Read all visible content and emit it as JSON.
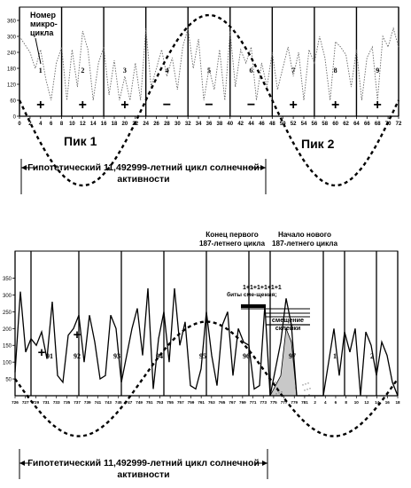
{
  "chart_data": [
    {
      "type": "line",
      "yticks": [
        "360",
        "300",
        "240",
        "180",
        "120",
        "60",
        "0"
      ],
      "ylim": [
        0,
        360
      ],
      "xlim": [
        0,
        72
      ],
      "xticks": [
        "0",
        "2",
        "4",
        "6",
        "8",
        "10",
        "12",
        "14",
        "16",
        "18",
        "20",
        "22",
        "24",
        "26",
        "28",
        "30",
        "32",
        "34",
        "36",
        "38",
        "40",
        "42",
        "44",
        "46",
        "48",
        "50",
        "52",
        "54",
        "56",
        "58",
        "60",
        "62",
        "64",
        "66",
        "68",
        "70",
        "72"
      ],
      "segment_boundaries": [
        0,
        8,
        16,
        24,
        32,
        40,
        48,
        56,
        64,
        72
      ],
      "segment_numbers": [
        "1",
        "2",
        "3",
        "4",
        "5",
        "6",
        "7",
        "8",
        "9"
      ],
      "segment_signs": [
        "+",
        "+",
        "+",
        "−",
        "−",
        "−",
        "+",
        "+",
        "+"
      ],
      "annotation_label": "Номер микро-цикла",
      "peak1_label": "Пик 1",
      "peak2_label": "Пик 2",
      "hypothesis_label_line1": "Гипотетический 11,492999-летний цикл солнечной",
      "hypothesis_label_line2": "активности",
      "wave": {
        "period": 48,
        "amplitude": 320,
        "baseline": 60
      },
      "series": [
        {
          "values": [
            [
              0,
              300
            ],
            [
              2,
              240
            ],
            [
              3,
              180
            ],
            [
              4,
              250
            ],
            [
              5,
              140
            ],
            [
              6,
              60
            ],
            [
              7,
              200
            ],
            [
              8,
              260
            ],
            [
              9,
              60
            ],
            [
              10,
              250
            ],
            [
              11,
              110
            ],
            [
              12,
              320
            ],
            [
              13,
              250
            ],
            [
              14,
              60
            ],
            [
              15,
              200
            ],
            [
              16,
              260
            ],
            [
              17,
              80
            ],
            [
              18,
              210
            ],
            [
              19,
              60
            ],
            [
              20,
              150
            ],
            [
              21,
              60
            ],
            [
              22,
              200
            ],
            [
              23,
              60
            ],
            [
              24,
              330
            ],
            [
              25,
              110
            ],
            [
              26,
              180
            ],
            [
              27,
              250
            ],
            [
              28,
              150
            ],
            [
              29,
              220
            ],
            [
              30,
              100
            ],
            [
              31,
              260
            ],
            [
              32,
              330
            ],
            [
              33,
              180
            ],
            [
              34,
              290
            ],
            [
              35,
              60
            ],
            [
              36,
              180
            ],
            [
              37,
              100
            ],
            [
              38,
              250
            ],
            [
              39,
              60
            ],
            [
              40,
              320
            ],
            [
              41,
              110
            ],
            [
              42,
              250
            ],
            [
              43,
              200
            ],
            [
              44,
              260
            ],
            [
              45,
              60
            ],
            [
              46,
              200
            ],
            [
              47,
              110
            ],
            [
              48,
              240
            ],
            [
              49,
              100
            ],
            [
              50,
              180
            ],
            [
              51,
              260
            ],
            [
              52,
              150
            ],
            [
              53,
              240
            ],
            [
              54,
              60
            ],
            [
              55,
              250
            ],
            [
              56,
              200
            ],
            [
              57,
              300
            ],
            [
              58,
              220
            ],
            [
              59,
              60
            ],
            [
              60,
              280
            ],
            [
              61,
              260
            ],
            [
              62,
              230
            ],
            [
              63,
              110
            ],
            [
              64,
              250
            ],
            [
              65,
              60
            ],
            [
              66,
              220
            ],
            [
              67,
              260
            ],
            [
              68,
              60
            ],
            [
              69,
              300
            ],
            [
              70,
              260
            ],
            [
              71,
              330
            ],
            [
              72,
              260
            ]
          ]
        }
      ]
    },
    {
      "type": "line",
      "yticks": [
        "350",
        "300",
        "250",
        "200",
        "150",
        "100",
        "50"
      ],
      "ylim": [
        0,
        370
      ],
      "xlim": [
        0,
        72
      ],
      "xticks": [
        "726",
        "727",
        "729",
        "731",
        "733",
        "735",
        "737",
        "739",
        "741",
        "743",
        "745",
        "747",
        "749",
        "751",
        "753",
        "755",
        "757",
        "759",
        "761",
        "763",
        "765",
        "767",
        "769",
        "771",
        "773",
        "775",
        "777",
        "779",
        "781",
        "2",
        "4",
        "6",
        "8",
        "10",
        "12",
        "14",
        "16",
        "18"
      ],
      "segment_labels": [
        "91",
        "92",
        "93",
        "94",
        "95",
        "96",
        "97",
        "1",
        "2"
      ],
      "annotation_end": "Конец первого 187-летнего цикла",
      "annotation_start": "Начало нового 187-летнего цикла",
      "annotation_bits": "1+1+1+1+1+1 биты сме-щения;",
      "annotation_shift": "смещение склейки",
      "hypothesis_label_line1": "Гипотетический 11,492999-летний цикл солнечной",
      "hypothesis_label_line2": "активности",
      "wave": {
        "period": 48,
        "amplitude": 310,
        "baseline": 50
      },
      "series": [
        {
          "values": [
            [
              0,
              70
            ],
            [
              1,
              310
            ],
            [
              2,
              130
            ],
            [
              3,
              170
            ],
            [
              4,
              150
            ],
            [
              5,
              190
            ],
            [
              6,
              110
            ],
            [
              7,
              280
            ],
            [
              8,
              60
            ],
            [
              9,
              40
            ],
            [
              10,
              180
            ],
            [
              11,
              200
            ],
            [
              12,
              240
            ],
            [
              13,
              100
            ],
            [
              14,
              240
            ],
            [
              15,
              160
            ],
            [
              16,
              50
            ],
            [
              17,
              60
            ],
            [
              18,
              240
            ],
            [
              19,
              200
            ],
            [
              20,
              40
            ],
            [
              21,
              120
            ],
            [
              22,
              200
            ],
            [
              23,
              260
            ],
            [
              24,
              120
            ],
            [
              25,
              320
            ],
            [
              26,
              20
            ],
            [
              27,
              170
            ],
            [
              28,
              250
            ],
            [
              29,
              100
            ],
            [
              30,
              320
            ],
            [
              31,
              150
            ],
            [
              32,
              220
            ],
            [
              33,
              30
            ],
            [
              34,
              20
            ],
            [
              35,
              80
            ],
            [
              36,
              250
            ],
            [
              37,
              120
            ],
            [
              38,
              30
            ],
            [
              39,
              210
            ],
            [
              40,
              250
            ],
            [
              41,
              60
            ],
            [
              42,
              200
            ],
            [
              43,
              160
            ],
            [
              44,
              150
            ],
            [
              45,
              20
            ],
            [
              46,
              30
            ],
            [
              47,
              270
            ],
            [
              48,
              0
            ],
            [
              49,
              80
            ],
            [
              50,
              160
            ],
            [
              51,
              290
            ],
            [
              52,
              210
            ],
            [
              53,
              0
            ],
            [
              54,
              0
            ],
            [
              55,
              0
            ],
            [
              56,
              0
            ],
            [
              57,
              0
            ],
            [
              58,
              0
            ],
            [
              59,
              100
            ],
            [
              60,
              200
            ],
            [
              61,
              60
            ],
            [
              62,
              190
            ],
            [
              63,
              130
            ],
            [
              64,
              200
            ],
            [
              65,
              0
            ],
            [
              66,
              190
            ],
            [
              67,
              150
            ],
            [
              68,
              60
            ],
            [
              69,
              160
            ],
            [
              70,
              120
            ],
            [
              71,
              40
            ],
            [
              72,
              0
            ]
          ]
        }
      ]
    }
  ]
}
